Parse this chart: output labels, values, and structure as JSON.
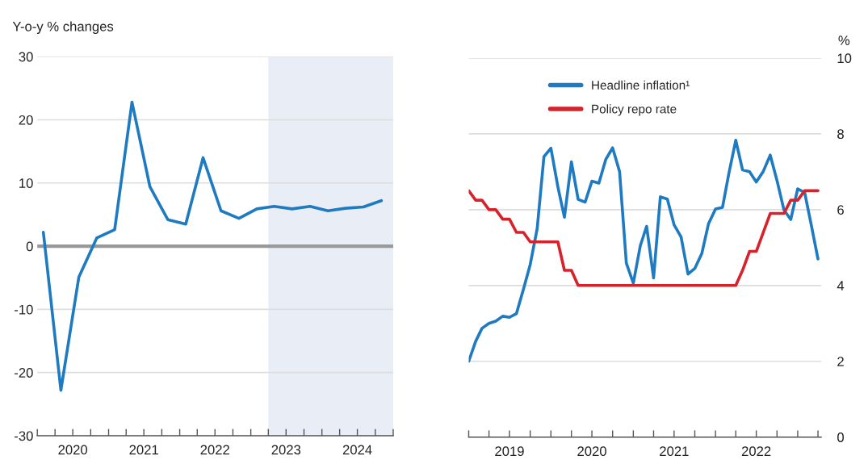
{
  "chart_data": [
    {
      "type": "line",
      "ylabel": "Y-o-y % changes",
      "x": [
        "2020-02",
        "2020-05",
        "2020-08",
        "2020-11",
        "2021-02",
        "2021-05",
        "2021-08",
        "2021-11",
        "2022-02",
        "2022-05",
        "2022-08",
        "2022-11",
        "2023-02",
        "2023-05",
        "2023-08",
        "2023-11",
        "2024-02",
        "2024-05",
        "2024-08",
        "2024-11"
      ],
      "series": [
        {
          "color": "#1f7bc1",
          "values": [
            2.2,
            -22.8,
            -4.9,
            1.3,
            2.6,
            22.8,
            9.4,
            4.2,
            3.5,
            14,
            5.6,
            4.4,
            5.9,
            6.3,
            5.9,
            6.3,
            5.6,
            6.0,
            6.2,
            7.2
          ]
        }
      ],
      "xlim": [
        "2020-01-01",
        "2025-01-01"
      ],
      "xticks": [
        {
          "value": "2020-01-01",
          "label": null
        },
        {
          "value": "2020-04-01",
          "label": null
        },
        {
          "value": "2020-07-01",
          "label": "2020"
        },
        {
          "value": "2020-10-01",
          "label": null
        },
        {
          "value": "2021-01-01",
          "label": null
        },
        {
          "value": "2021-04-01",
          "label": null
        },
        {
          "value": "2021-07-01",
          "label": "2021"
        },
        {
          "value": "2021-10-01",
          "label": null
        },
        {
          "value": "2022-01-01",
          "label": null
        },
        {
          "value": "2022-04-01",
          "label": null
        },
        {
          "value": "2022-07-01",
          "label": "2022"
        },
        {
          "value": "2022-10-01",
          "label": null
        },
        {
          "value": "2023-01-01",
          "label": null
        },
        {
          "value": "2023-04-01",
          "label": null
        },
        {
          "value": "2023-07-01",
          "label": "2023"
        },
        {
          "value": "2023-10-01",
          "label": null
        },
        {
          "value": "2024-01-01",
          "label": null
        },
        {
          "value": "2024-04-01",
          "label": null
        },
        {
          "value": "2024-07-01",
          "label": "2024"
        },
        {
          "value": "2024-10-01",
          "label": null
        },
        {
          "value": "2025-01-01",
          "label": null
        }
      ],
      "ylim": [
        -30,
        30
      ],
      "yticks": [
        -30,
        -20,
        -10,
        0,
        10,
        20,
        30
      ],
      "bands": [
        {
          "axis": "x",
          "from": "2023-04-01",
          "to": "2025-01-01",
          "color": "#e9edf6"
        }
      ],
      "ref_lines": [
        {
          "axis": "y",
          "value": 0,
          "color": "#999999"
        }
      ],
      "grid": "y",
      "legend": false
    },
    {
      "type": "line",
      "ylabel": "%",
      "x": [
        "2019-01",
        "2019-02",
        "2019-03",
        "2019-04",
        "2019-05",
        "2019-06",
        "2019-07",
        "2019-08",
        "2019-09",
        "2019-10",
        "2019-11",
        "2019-12",
        "2020-01",
        "2020-02",
        "2020-03",
        "2020-04",
        "2020-05",
        "2020-06",
        "2020-07",
        "2020-08",
        "2020-09",
        "2020-10",
        "2020-11",
        "2020-12",
        "2021-01",
        "2021-02",
        "2021-03",
        "2021-04",
        "2021-05",
        "2021-06",
        "2021-07",
        "2021-08",
        "2021-09",
        "2021-10",
        "2021-11",
        "2021-12",
        "2022-01",
        "2022-02",
        "2022-03",
        "2022-04",
        "2022-05",
        "2022-06",
        "2022-07",
        "2022-08",
        "2022-09",
        "2022-10",
        "2022-11",
        "2022-12",
        "2023-01",
        "2023-02",
        "2023-03",
        "2023-04"
      ],
      "series": [
        {
          "name": "Headline inflation¹",
          "color": "#1f7bc1",
          "values": [
            2.0,
            2.53,
            2.87,
            3.0,
            3.06,
            3.19,
            3.16,
            3.26,
            3.9,
            4.55,
            5.5,
            7.4,
            7.62,
            6.6,
            5.8,
            7.26,
            6.27,
            6.2,
            6.75,
            6.7,
            7.33,
            7.63,
            7.0,
            4.59,
            4.06,
            5.05,
            5.56,
            4.2,
            6.34,
            6.28,
            5.6,
            5.28,
            4.3,
            4.45,
            4.84,
            5.63,
            6.02,
            6.06,
            6.95,
            7.83,
            7.05,
            7.0,
            6.73,
            7.01,
            7.44,
            6.77,
            5.99,
            5.74,
            6.55,
            6.45,
            5.63,
            4.7
          ]
        },
        {
          "name": "Policy repo rate",
          "color": "#d7212b",
          "values": [
            6.5,
            6.25,
            6.25,
            6.0,
            6.0,
            5.75,
            5.75,
            5.4,
            5.4,
            5.15,
            5.15,
            5.15,
            5.15,
            5.15,
            4.4,
            4.4,
            4.0,
            4.0,
            4.0,
            4.0,
            4.0,
            4.0,
            4.0,
            4.0,
            4.0,
            4.0,
            4.0,
            4.0,
            4.0,
            4.0,
            4.0,
            4.0,
            4.0,
            4.0,
            4.0,
            4.0,
            4.0,
            4.0,
            4.0,
            4.0,
            4.4,
            4.9,
            4.9,
            5.4,
            5.9,
            5.9,
            5.9,
            6.25,
            6.25,
            6.5,
            6.5,
            6.5
          ]
        }
      ],
      "xlim": [
        "2019-01-01",
        "2023-04-15"
      ],
      "xticks": [
        {
          "value": "2019-01-01",
          "label": null
        },
        {
          "value": "2019-04-01",
          "label": null
        },
        {
          "value": "2019-07-01",
          "label": "2019"
        },
        {
          "value": "2019-10-01",
          "label": null
        },
        {
          "value": "2020-01-01",
          "label": null
        },
        {
          "value": "2020-04-01",
          "label": null
        },
        {
          "value": "2020-07-01",
          "label": "2020"
        },
        {
          "value": "2020-10-01",
          "label": null
        },
        {
          "value": "2021-01-01",
          "label": null
        },
        {
          "value": "2021-04-01",
          "label": null
        },
        {
          "value": "2021-07-01",
          "label": "2021"
        },
        {
          "value": "2021-10-01",
          "label": null
        },
        {
          "value": "2022-01-01",
          "label": null
        },
        {
          "value": "2022-04-01",
          "label": null
        },
        {
          "value": "2022-07-01",
          "label": "2022"
        },
        {
          "value": "2022-10-01",
          "label": null
        },
        {
          "value": "2023-01-01",
          "label": null
        },
        {
          "value": "2023-04-01",
          "label": null
        }
      ],
      "ylim": [
        0,
        10
      ],
      "yticks": [
        0,
        2,
        4,
        6,
        8,
        10
      ],
      "grid": "y",
      "legend": "top"
    }
  ]
}
